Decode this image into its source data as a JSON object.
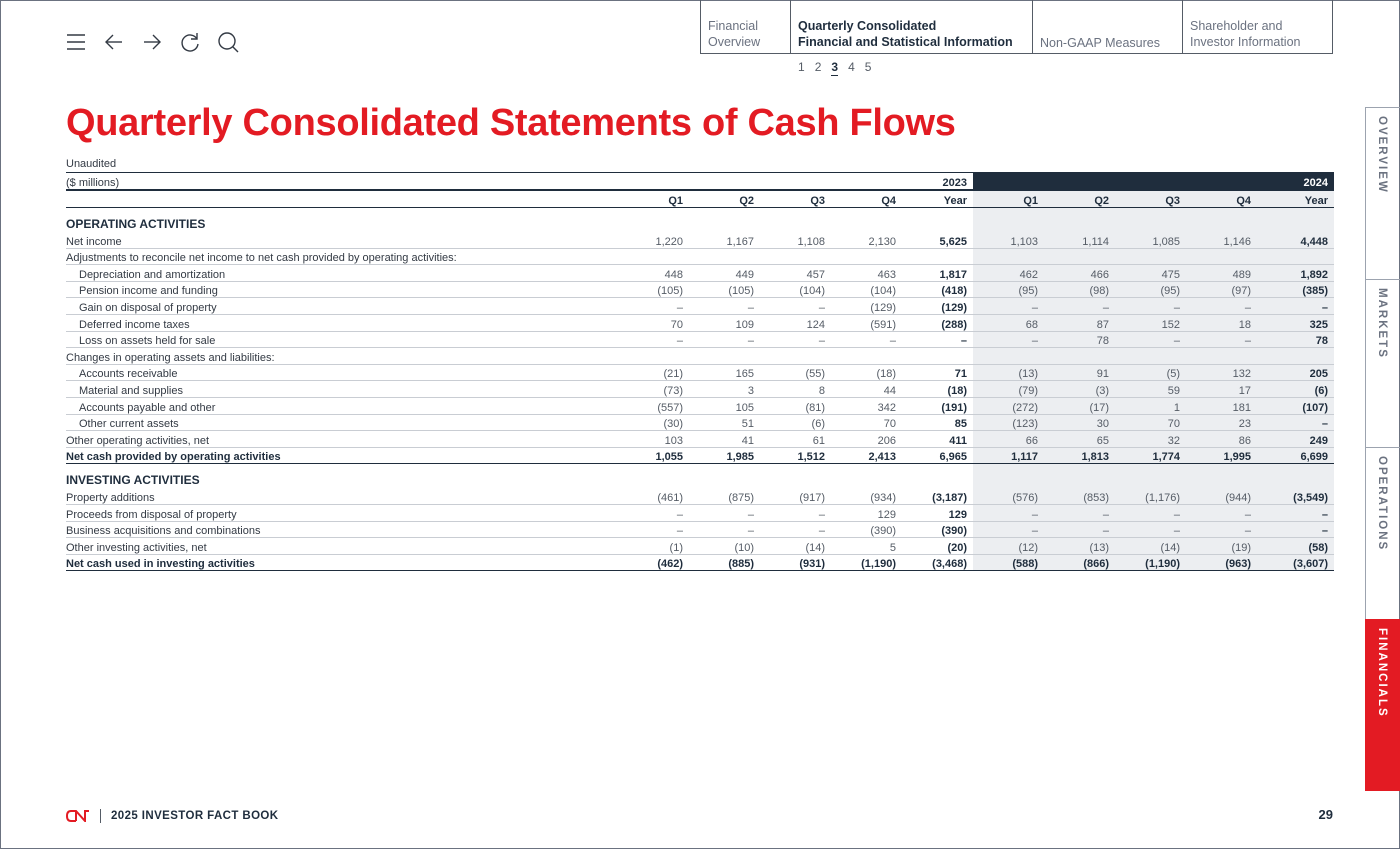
{
  "nav": {
    "tabs": [
      {
        "label_line1": "Financial",
        "label_line2": "Overview"
      },
      {
        "label_line1": "Quarterly Consolidated",
        "label_line2": "Financial and Statistical Information"
      },
      {
        "label_line1": "Non-GAAP Measures"
      },
      {
        "label_line1": "Shareholder and",
        "label_line2": "Investor Information"
      }
    ],
    "active_tab": 1,
    "pages": [
      "1",
      "2",
      "3",
      "4",
      "5"
    ],
    "current_page": "3"
  },
  "side_tabs": [
    "OVERVIEW",
    "MARKETS",
    "OPERATIONS",
    "FINANCIALS"
  ],
  "active_side_tab": "FINANCIALS",
  "title": "Quarterly Consolidated Statements of Cash Flows",
  "table": {
    "note": "Unaudited",
    "units": "($ millions)",
    "years": [
      "2023",
      "2024"
    ],
    "columns": [
      "Q1",
      "Q2",
      "Q3",
      "Q4",
      "Year",
      "Q1",
      "Q2",
      "Q3",
      "Q4",
      "Year"
    ],
    "rows": [
      {
        "type": "section",
        "label": "OPERATING ACTIVITIES"
      },
      {
        "label": "Net income",
        "values": [
          "1,220",
          "1,167",
          "1,108",
          "2,130",
          "5,625",
          "1,103",
          "1,114",
          "1,085",
          "1,146",
          "4,448"
        ]
      },
      {
        "label": "Adjustments to reconcile net income to net cash provided by operating activities:",
        "values": []
      },
      {
        "label": "Depreciation and amortization",
        "indent": true,
        "values": [
          "448",
          "449",
          "457",
          "463",
          "1,817",
          "462",
          "466",
          "475",
          "489",
          "1,892"
        ]
      },
      {
        "label": "Pension income and funding",
        "indent": true,
        "values": [
          "(105)",
          "(105)",
          "(104)",
          "(104)",
          "(418)",
          "(95)",
          "(98)",
          "(95)",
          "(97)",
          "(385)"
        ]
      },
      {
        "label": "Gain on disposal of property",
        "indent": true,
        "values": [
          "–",
          "–",
          "–",
          "(129)",
          "(129)",
          "–",
          "–",
          "–",
          "–",
          "–"
        ]
      },
      {
        "label": "Deferred income taxes",
        "indent": true,
        "values": [
          "70",
          "109",
          "124",
          "(591)",
          "(288)",
          "68",
          "87",
          "152",
          "18",
          "325"
        ]
      },
      {
        "label": "Loss on assets held for sale",
        "indent": true,
        "values": [
          "–",
          "–",
          "–",
          "–",
          "–",
          "–",
          "78",
          "–",
          "–",
          "78"
        ]
      },
      {
        "label": "Changes in operating assets and liabilities:",
        "values": []
      },
      {
        "label": "Accounts receivable",
        "indent": true,
        "values": [
          "(21)",
          "165",
          "(55)",
          "(18)",
          "71",
          "(13)",
          "91",
          "(5)",
          "132",
          "205"
        ]
      },
      {
        "label": "Material and supplies",
        "indent": true,
        "values": [
          "(73)",
          "3",
          "8",
          "44",
          "(18)",
          "(79)",
          "(3)",
          "59",
          "17",
          "(6)"
        ]
      },
      {
        "label": "Accounts payable and other",
        "indent": true,
        "values": [
          "(557)",
          "105",
          "(81)",
          "342",
          "(191)",
          "(272)",
          "(17)",
          "1",
          "181",
          "(107)"
        ]
      },
      {
        "label": "Other current assets",
        "indent": true,
        "values": [
          "(30)",
          "51",
          "(6)",
          "70",
          "85",
          "(123)",
          "30",
          "70",
          "23",
          "–"
        ]
      },
      {
        "label": "Other operating activities, net",
        "values": [
          "103",
          "41",
          "61",
          "206",
          "411",
          "66",
          "65",
          "32",
          "86",
          "249"
        ]
      },
      {
        "type": "total",
        "label": "Net cash provided by operating activities",
        "values": [
          "1,055",
          "1,985",
          "1,512",
          "2,413",
          "6,965",
          "1,117",
          "1,813",
          "1,774",
          "1,995",
          "6,699"
        ]
      },
      {
        "type": "section",
        "label": "INVESTING ACTIVITIES"
      },
      {
        "label": "Property additions",
        "values": [
          "(461)",
          "(875)",
          "(917)",
          "(934)",
          "(3,187)",
          "(576)",
          "(853)",
          "(1,176)",
          "(944)",
          "(3,549)"
        ]
      },
      {
        "label": "Proceeds from disposal of property",
        "values": [
          "–",
          "–",
          "–",
          "129",
          "129",
          "–",
          "–",
          "–",
          "–",
          "–"
        ]
      },
      {
        "label": "Business acquisitions and combinations",
        "values": [
          "–",
          "–",
          "–",
          "(390)",
          "(390)",
          "–",
          "–",
          "–",
          "–",
          "–"
        ]
      },
      {
        "label": "Other investing activities, net",
        "values": [
          "(1)",
          "(10)",
          "(14)",
          "5",
          "(20)",
          "(12)",
          "(13)",
          "(14)",
          "(19)",
          "(58)"
        ]
      },
      {
        "type": "total",
        "label": "Net cash used in investing activities",
        "values": [
          "(462)",
          "(885)",
          "(931)",
          "(1,190)",
          "(3,468)",
          "(588)",
          "(866)",
          "(1,190)",
          "(963)",
          "(3,607)"
        ]
      }
    ]
  },
  "footer": {
    "logo": "CN",
    "title": "2025 INVESTOR FACT BOOK",
    "page_number": "29"
  },
  "colors": {
    "brand_red": "#e31b23",
    "navy": "#1f2d3d",
    "shade_2024": "#eceef1"
  }
}
